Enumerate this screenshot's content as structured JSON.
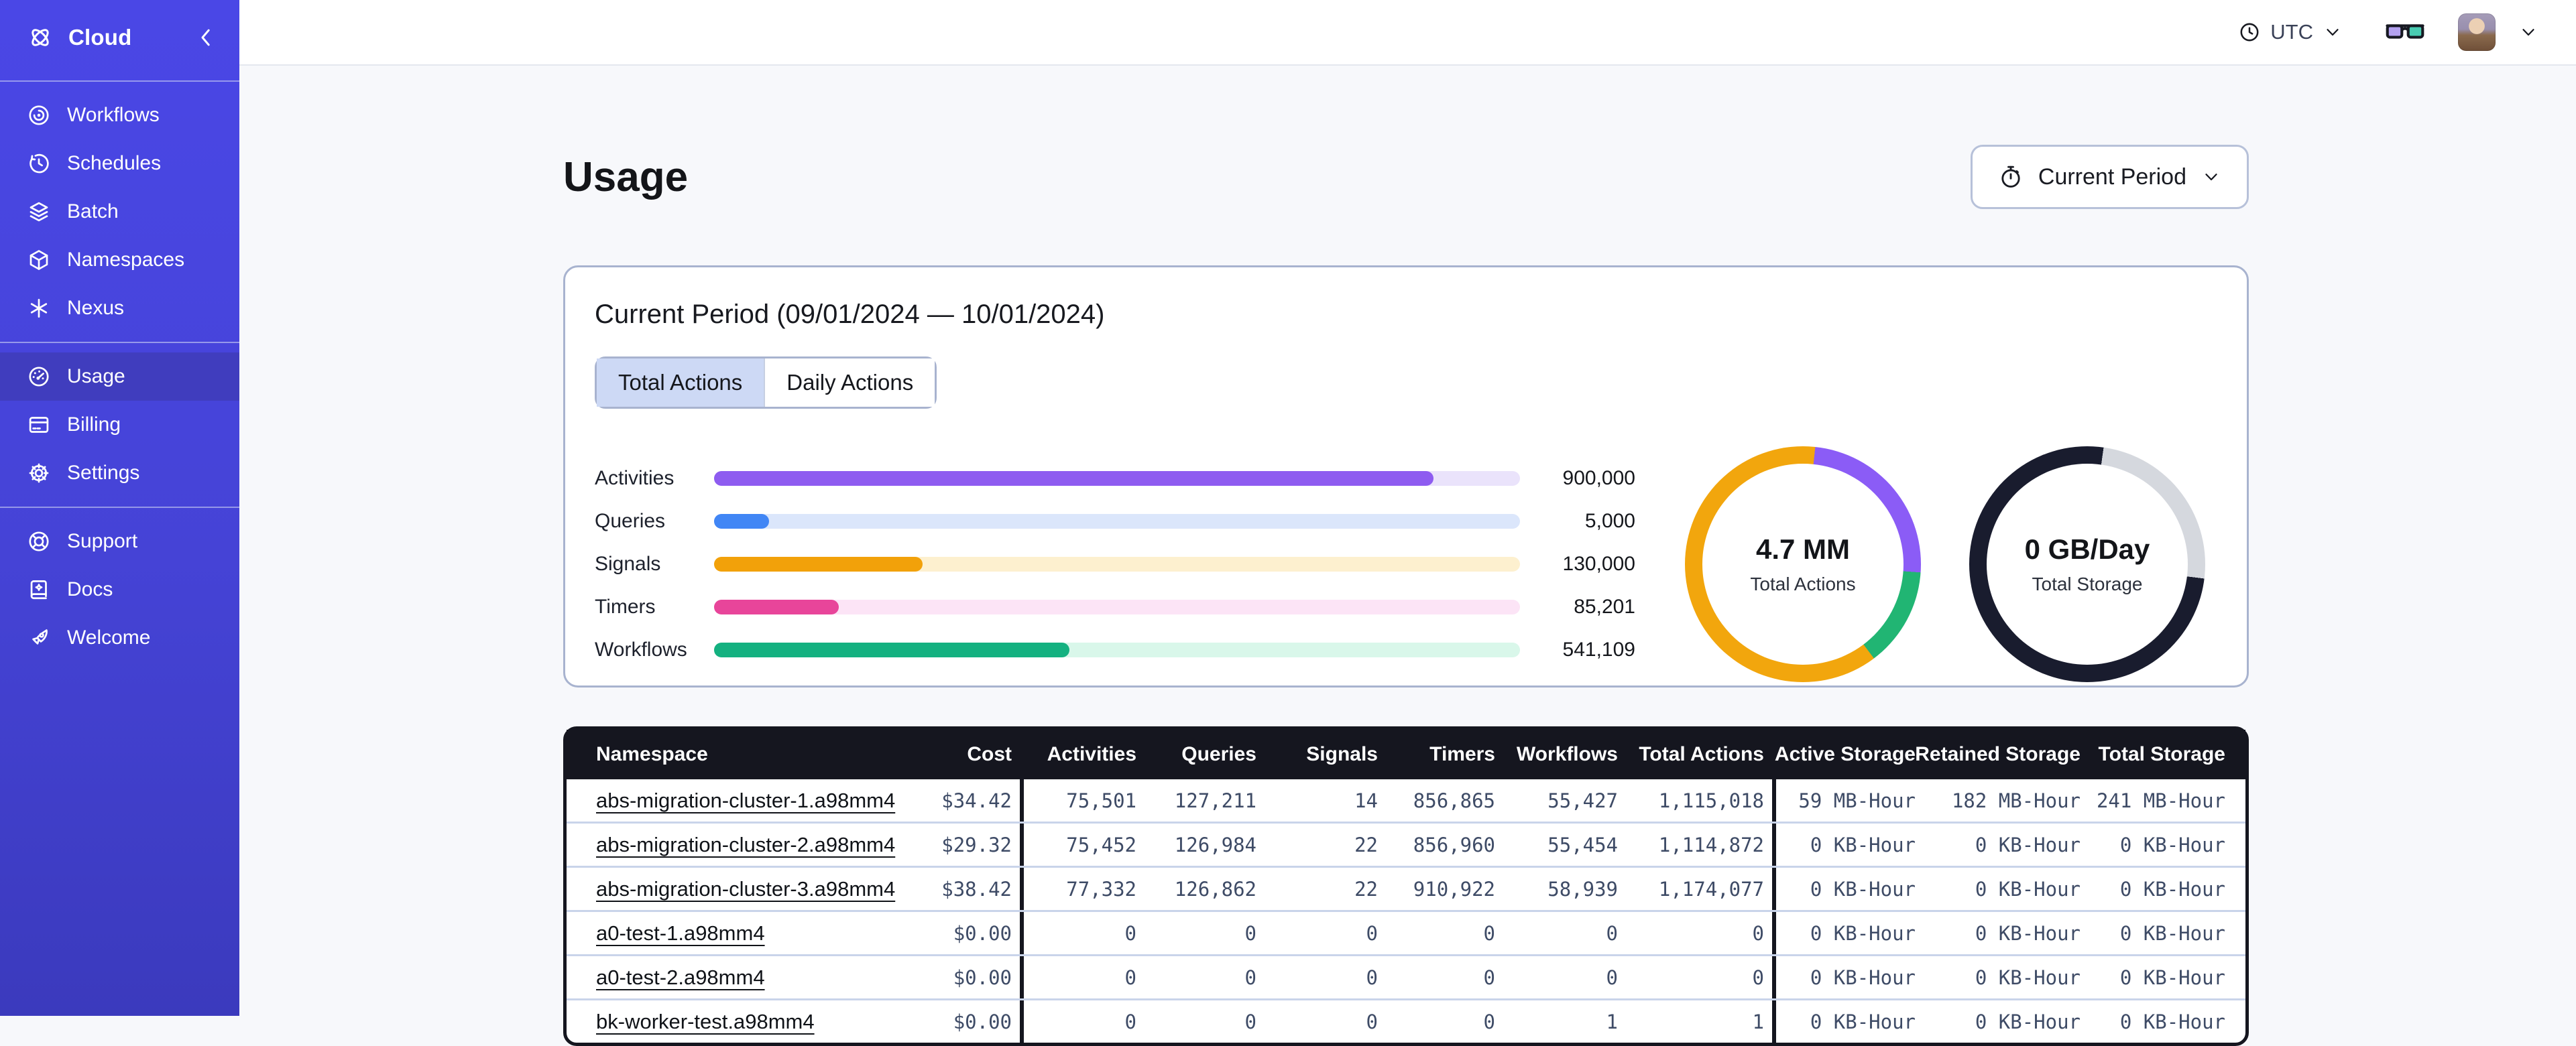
{
  "sidebar": {
    "brand": "Cloud",
    "sections": [
      {
        "items": [
          {
            "icon": "workflows",
            "label": "Workflows",
            "active": false
          },
          {
            "icon": "schedules",
            "label": "Schedules",
            "active": false
          },
          {
            "icon": "batch",
            "label": "Batch",
            "active": false
          },
          {
            "icon": "namespaces",
            "label": "Namespaces",
            "active": false
          },
          {
            "icon": "nexus",
            "label": "Nexus",
            "active": false
          }
        ]
      },
      {
        "items": [
          {
            "icon": "usage",
            "label": "Usage",
            "active": true
          },
          {
            "icon": "billing",
            "label": "Billing",
            "active": false
          },
          {
            "icon": "settings",
            "label": "Settings",
            "active": false
          }
        ]
      },
      {
        "items": [
          {
            "icon": "support",
            "label": "Support",
            "active": false
          },
          {
            "icon": "docs",
            "label": "Docs",
            "active": false
          },
          {
            "icon": "welcome",
            "label": "Welcome",
            "active": false
          }
        ]
      }
    ]
  },
  "topbar": {
    "timezone_label": "UTC",
    "icons": [
      "clock-icon",
      "timezone-chevron-icon",
      "glasses-icon",
      "avatar",
      "account-chevron-icon"
    ]
  },
  "page": {
    "title": "Usage",
    "period_button_label": "Current Period"
  },
  "usage_card": {
    "title": "Current Period (09/01/2024 — 10/01/2024)",
    "tabs": [
      {
        "label": "Total Actions",
        "selected": true
      },
      {
        "label": "Daily Actions",
        "selected": false
      }
    ],
    "bars": [
      {
        "label": "Activities",
        "value": "900,000",
        "fill_pct": 89.3,
        "color": "#8e5cf0",
        "track": "#eae3fb"
      },
      {
        "label": "Queries",
        "value": "5,000",
        "fill_pct": 6.8,
        "color": "#4186f5",
        "track": "#dbe6fb"
      },
      {
        "label": "Signals",
        "value": "130,000",
        "fill_pct": 25.9,
        "color": "#f2a10a",
        "track": "#fdf0cf"
      },
      {
        "label": "Timers",
        "value": "85,201",
        "fill_pct": 15.5,
        "color": "#e8459a",
        "track": "#fce4f6"
      },
      {
        "label": "Workflows",
        "value": "541,109",
        "fill_pct": 44.1,
        "color": "#14b180",
        "track": "#d9f7ea"
      }
    ],
    "donuts": [
      {
        "value": "4.7 MM",
        "label": "Total Actions",
        "segments": [
          {
            "color": "#f2a60d",
            "from": 0,
            "to": 6
          },
          {
            "color": "#8b5cf6",
            "from": 6,
            "to": 94
          },
          {
            "color": "#21b573",
            "from": 94,
            "to": 143
          },
          {
            "color": "#f2a60d",
            "from": 143,
            "to": 360
          }
        ]
      },
      {
        "value": "0 GB/Day",
        "label": "Total Storage",
        "segments": [
          {
            "color": "#191c2e",
            "from": 0,
            "to": 8
          },
          {
            "color": "#d5d8de",
            "from": 8,
            "to": 97
          },
          {
            "color": "#191c2e",
            "from": 97,
            "to": 360
          }
        ]
      }
    ]
  },
  "table": {
    "columns": [
      "Namespace",
      "Cost",
      "Activities",
      "Queries",
      "Signals",
      "Timers",
      "Workflows",
      "Total Actions",
      "Active Storage",
      "Retained Storage",
      "Total Storage"
    ],
    "rows": [
      [
        "abs-migration-cluster-1.a98mm4",
        "$34.42",
        "75,501",
        "127,211",
        "14",
        "856,865",
        "55,427",
        "1,115,018",
        "59 MB-Hour",
        "182 MB-Hour",
        "241 MB-Hour"
      ],
      [
        "abs-migration-cluster-2.a98mm4",
        "$29.32",
        "75,452",
        "126,984",
        "22",
        "856,960",
        "55,454",
        "1,114,872",
        "0 KB-Hour",
        "0 KB-Hour",
        "0 KB-Hour"
      ],
      [
        "abs-migration-cluster-3.a98mm4",
        "$38.42",
        "77,332",
        "126,862",
        "22",
        "910,922",
        "58,939",
        "1,174,077",
        "0 KB-Hour",
        "0 KB-Hour",
        "0 KB-Hour"
      ],
      [
        "a0-test-1.a98mm4",
        "$0.00",
        "0",
        "0",
        "0",
        "0",
        "0",
        "0",
        "0 KB-Hour",
        "0 KB-Hour",
        "0 KB-Hour"
      ],
      [
        "a0-test-2.a98mm4",
        "$0.00",
        "0",
        "0",
        "0",
        "0",
        "0",
        "0",
        "0 KB-Hour",
        "0 KB-Hour",
        "0 KB-Hour"
      ],
      [
        "bk-worker-test.a98mm4",
        "$0.00",
        "0",
        "0",
        "0",
        "0",
        "1",
        "1",
        "0 KB-Hour",
        "0 KB-Hour",
        "0 KB-Hour"
      ]
    ]
  },
  "chart_data": [
    {
      "type": "bar",
      "title": "Current Period (09/01/2024 — 10/01/2024) — Total Actions",
      "categories": [
        "Activities",
        "Queries",
        "Signals",
        "Timers",
        "Workflows"
      ],
      "values": [
        900000,
        5000,
        130000,
        85201,
        541109
      ],
      "xlabel": "",
      "ylabel": "",
      "legend": "none",
      "grid": false
    },
    {
      "type": "pie",
      "title": "Total Actions",
      "center_label": "4.7 MM",
      "slices": [
        {
          "name": "purple",
          "color": "#8b5cf6",
          "percent": 24.5
        },
        {
          "name": "green",
          "color": "#21b573",
          "percent": 13.6
        },
        {
          "name": "orange",
          "color": "#f2a60d",
          "percent": 61.9
        }
      ]
    },
    {
      "type": "pie",
      "title": "Total Storage",
      "center_label": "0 GB/Day",
      "slices": [
        {
          "name": "gray",
          "color": "#d5d8de",
          "percent": 24.7
        },
        {
          "name": "dark",
          "color": "#191c2e",
          "percent": 75.3
        }
      ]
    }
  ]
}
